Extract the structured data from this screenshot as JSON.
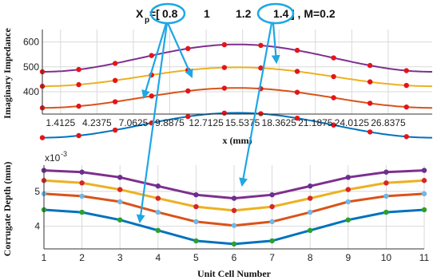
{
  "header": {
    "prefix": "X",
    "subscript": "p",
    "bracket_open": "=[",
    "values": [
      "0.8",
      "1",
      "1.2",
      "1.4"
    ],
    "suffix": "] , M=0.2"
  },
  "colors": {
    "series": [
      "#0072BD",
      "#D95319",
      "#EDB120",
      "#7E2F8E"
    ],
    "top_markers": "#E3151A",
    "arrows": "#1EA7E4",
    "bottom_markers": [
      "#2CA02C",
      "#6FB8E8",
      "#D62728",
      "#6B2F8E"
    ],
    "grid": "#d9d9d9"
  },
  "chart_data": [
    {
      "type": "line",
      "xlabel": "x (mm)",
      "ylabel": "Imaginary Impedance",
      "xlim": [
        0,
        30.25
      ],
      "ylim": [
        310,
        650
      ],
      "yticks": [
        400,
        500,
        600
      ],
      "xtick_labels": [
        "1.4125",
        "4.2375",
        "7.0625",
        "9.8875",
        "12.7125",
        "15.5375",
        "18.3625",
        "21.1875",
        "24.0125",
        "26.8375"
      ],
      "xticks": [
        1.4125,
        4.2375,
        7.0625,
        9.8875,
        12.7125,
        15.5375,
        18.3625,
        21.1875,
        24.0125,
        26.8375
      ],
      "grid": true,
      "marker_x": [
        0,
        2.825,
        5.65,
        8.475,
        11.3,
        14.125,
        16.95,
        19.775,
        22.6,
        25.425,
        28.25
      ],
      "series": [
        {
          "center": 265,
          "amplitude": 50
        },
        {
          "center": 375,
          "amplitude": 40
        },
        {
          "center": 460,
          "amplitude": 38
        },
        {
          "center": 535,
          "amplitude": 55
        }
      ]
    },
    {
      "type": "line",
      "xlabel": "Unit Cell Number",
      "ylabel": "Corrugate Depth (mm)",
      "exponent_label": "x10",
      "exponent_power": "-3",
      "categories": [
        1,
        2,
        3,
        4,
        5,
        6,
        7,
        8,
        9,
        10,
        11
      ],
      "xlim": [
        1,
        11
      ],
      "ylim": [
        3.35,
        5.75
      ],
      "yticks": [
        4,
        5
      ],
      "grid": true,
      "series": [
        {
          "values": [
            4.47,
            4.4,
            4.18,
            3.88,
            3.58,
            3.49,
            3.58,
            3.88,
            4.18,
            4.4,
            4.47
          ]
        },
        {
          "values": [
            4.93,
            4.86,
            4.7,
            4.4,
            4.13,
            4.02,
            4.13,
            4.4,
            4.7,
            4.86,
            4.93
          ]
        },
        {
          "values": [
            5.31,
            5.24,
            5.05,
            4.8,
            4.56,
            4.45,
            4.56,
            4.8,
            5.05,
            5.24,
            5.31
          ]
        },
        {
          "values": [
            5.6,
            5.55,
            5.4,
            5.15,
            4.9,
            4.8,
            4.9,
            5.15,
            5.4,
            5.55,
            5.6
          ]
        }
      ]
    }
  ]
}
